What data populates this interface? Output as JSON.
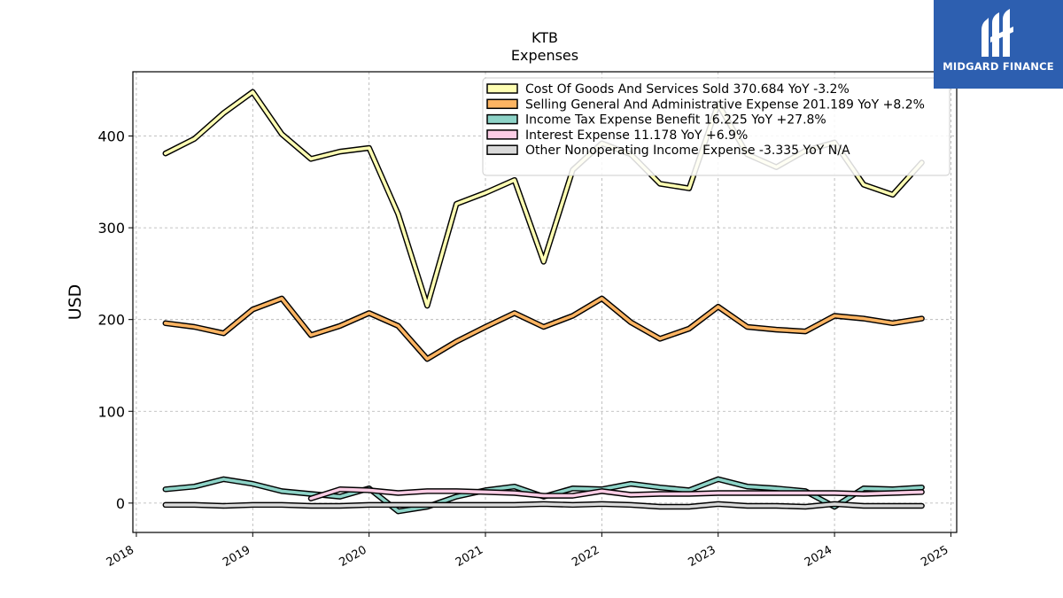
{
  "brand": {
    "name": "MIDGARD FINANCE",
    "bg_color": "#2d5fb0"
  },
  "chart_data": {
    "type": "line",
    "title": "KTB",
    "subtitle": "Expenses",
    "xlabel": "",
    "ylabel": "USD",
    "xlim": [
      2017.97,
      2025.05
    ],
    "ylim": [
      -32,
      470
    ],
    "yticks": [
      0,
      100,
      200,
      300,
      400
    ],
    "xticks": [
      "2018",
      "2019",
      "2020",
      "2021",
      "2022",
      "2023",
      "2024",
      "2025"
    ],
    "grid": true,
    "legend_position": "top-right",
    "x": [
      2018.25,
      2018.5,
      2018.75,
      2019.0,
      2019.25,
      2019.5,
      2019.75,
      2020.0,
      2020.25,
      2020.5,
      2020.75,
      2021.0,
      2021.25,
      2021.5,
      2021.75,
      2022.0,
      2022.25,
      2022.5,
      2022.75,
      2023.0,
      2023.25,
      2023.5,
      2023.75,
      2024.0,
      2024.25,
      2024.5,
      2024.75
    ],
    "series": [
      {
        "name": "Cost Of Goods And Services Sold",
        "legend": "Cost Of Goods And Services Sold  370.684 YoY -3.2%",
        "color": "#ffffb3",
        "values": [
          381,
          397,
          425,
          448,
          402,
          375,
          383,
          387,
          315,
          215,
          326,
          338,
          352,
          263,
          363,
          392,
          380,
          348,
          343,
          435,
          380,
          366,
          384,
          393,
          347,
          336,
          371
        ]
      },
      {
        "name": "Selling General And Administrative Expense",
        "legend": "Selling General And Administrative Expense  201.189 YoY +8.2%",
        "color": "#fdb462",
        "values": [
          196,
          192,
          185,
          211,
          223,
          183,
          193,
          207,
          193,
          157,
          176,
          192,
          207,
          192,
          204,
          223,
          197,
          179,
          190,
          214,
          192,
          189,
          187,
          204,
          201,
          196,
          201
        ]
      },
      {
        "name": "Income Tax Expense Benefit",
        "legend": "Income Tax Expense Benefit  16.225 YoY +27.8%",
        "color": "#8dd3c7",
        "values": [
          15,
          18,
          26,
          21,
          13,
          10,
          7,
          16,
          -9,
          -4,
          7,
          14,
          18,
          7,
          16,
          15,
          21,
          17,
          14,
          26,
          18,
          16,
          13,
          -4,
          16,
          15,
          17
        ]
      },
      {
        "name": "Interest Expense",
        "legend": "Interest Expense  11.178 YoY +6.9%",
        "color": "#fccde5",
        "values": [
          null,
          null,
          null,
          null,
          null,
          5,
          15,
          14,
          11,
          13,
          13,
          12,
          11,
          8,
          8,
          13,
          9,
          10,
          10,
          11,
          11,
          11,
          11,
          11,
          10,
          11,
          12
        ]
      },
      {
        "name": "Other Nonoperating Income Expense",
        "legend": "Other Nonoperating Income Expense  -3.335 YoY N/A",
        "color": "#d9d9d9",
        "values": [
          -2,
          -2,
          -3,
          -2,
          -2,
          -3,
          -3,
          -2,
          -2,
          -2,
          -2,
          -2,
          -2,
          -1,
          -2,
          -1,
          -2,
          -4,
          -4,
          -1,
          -3,
          -3,
          -4,
          -1,
          -3,
          -3,
          -3
        ]
      }
    ]
  }
}
